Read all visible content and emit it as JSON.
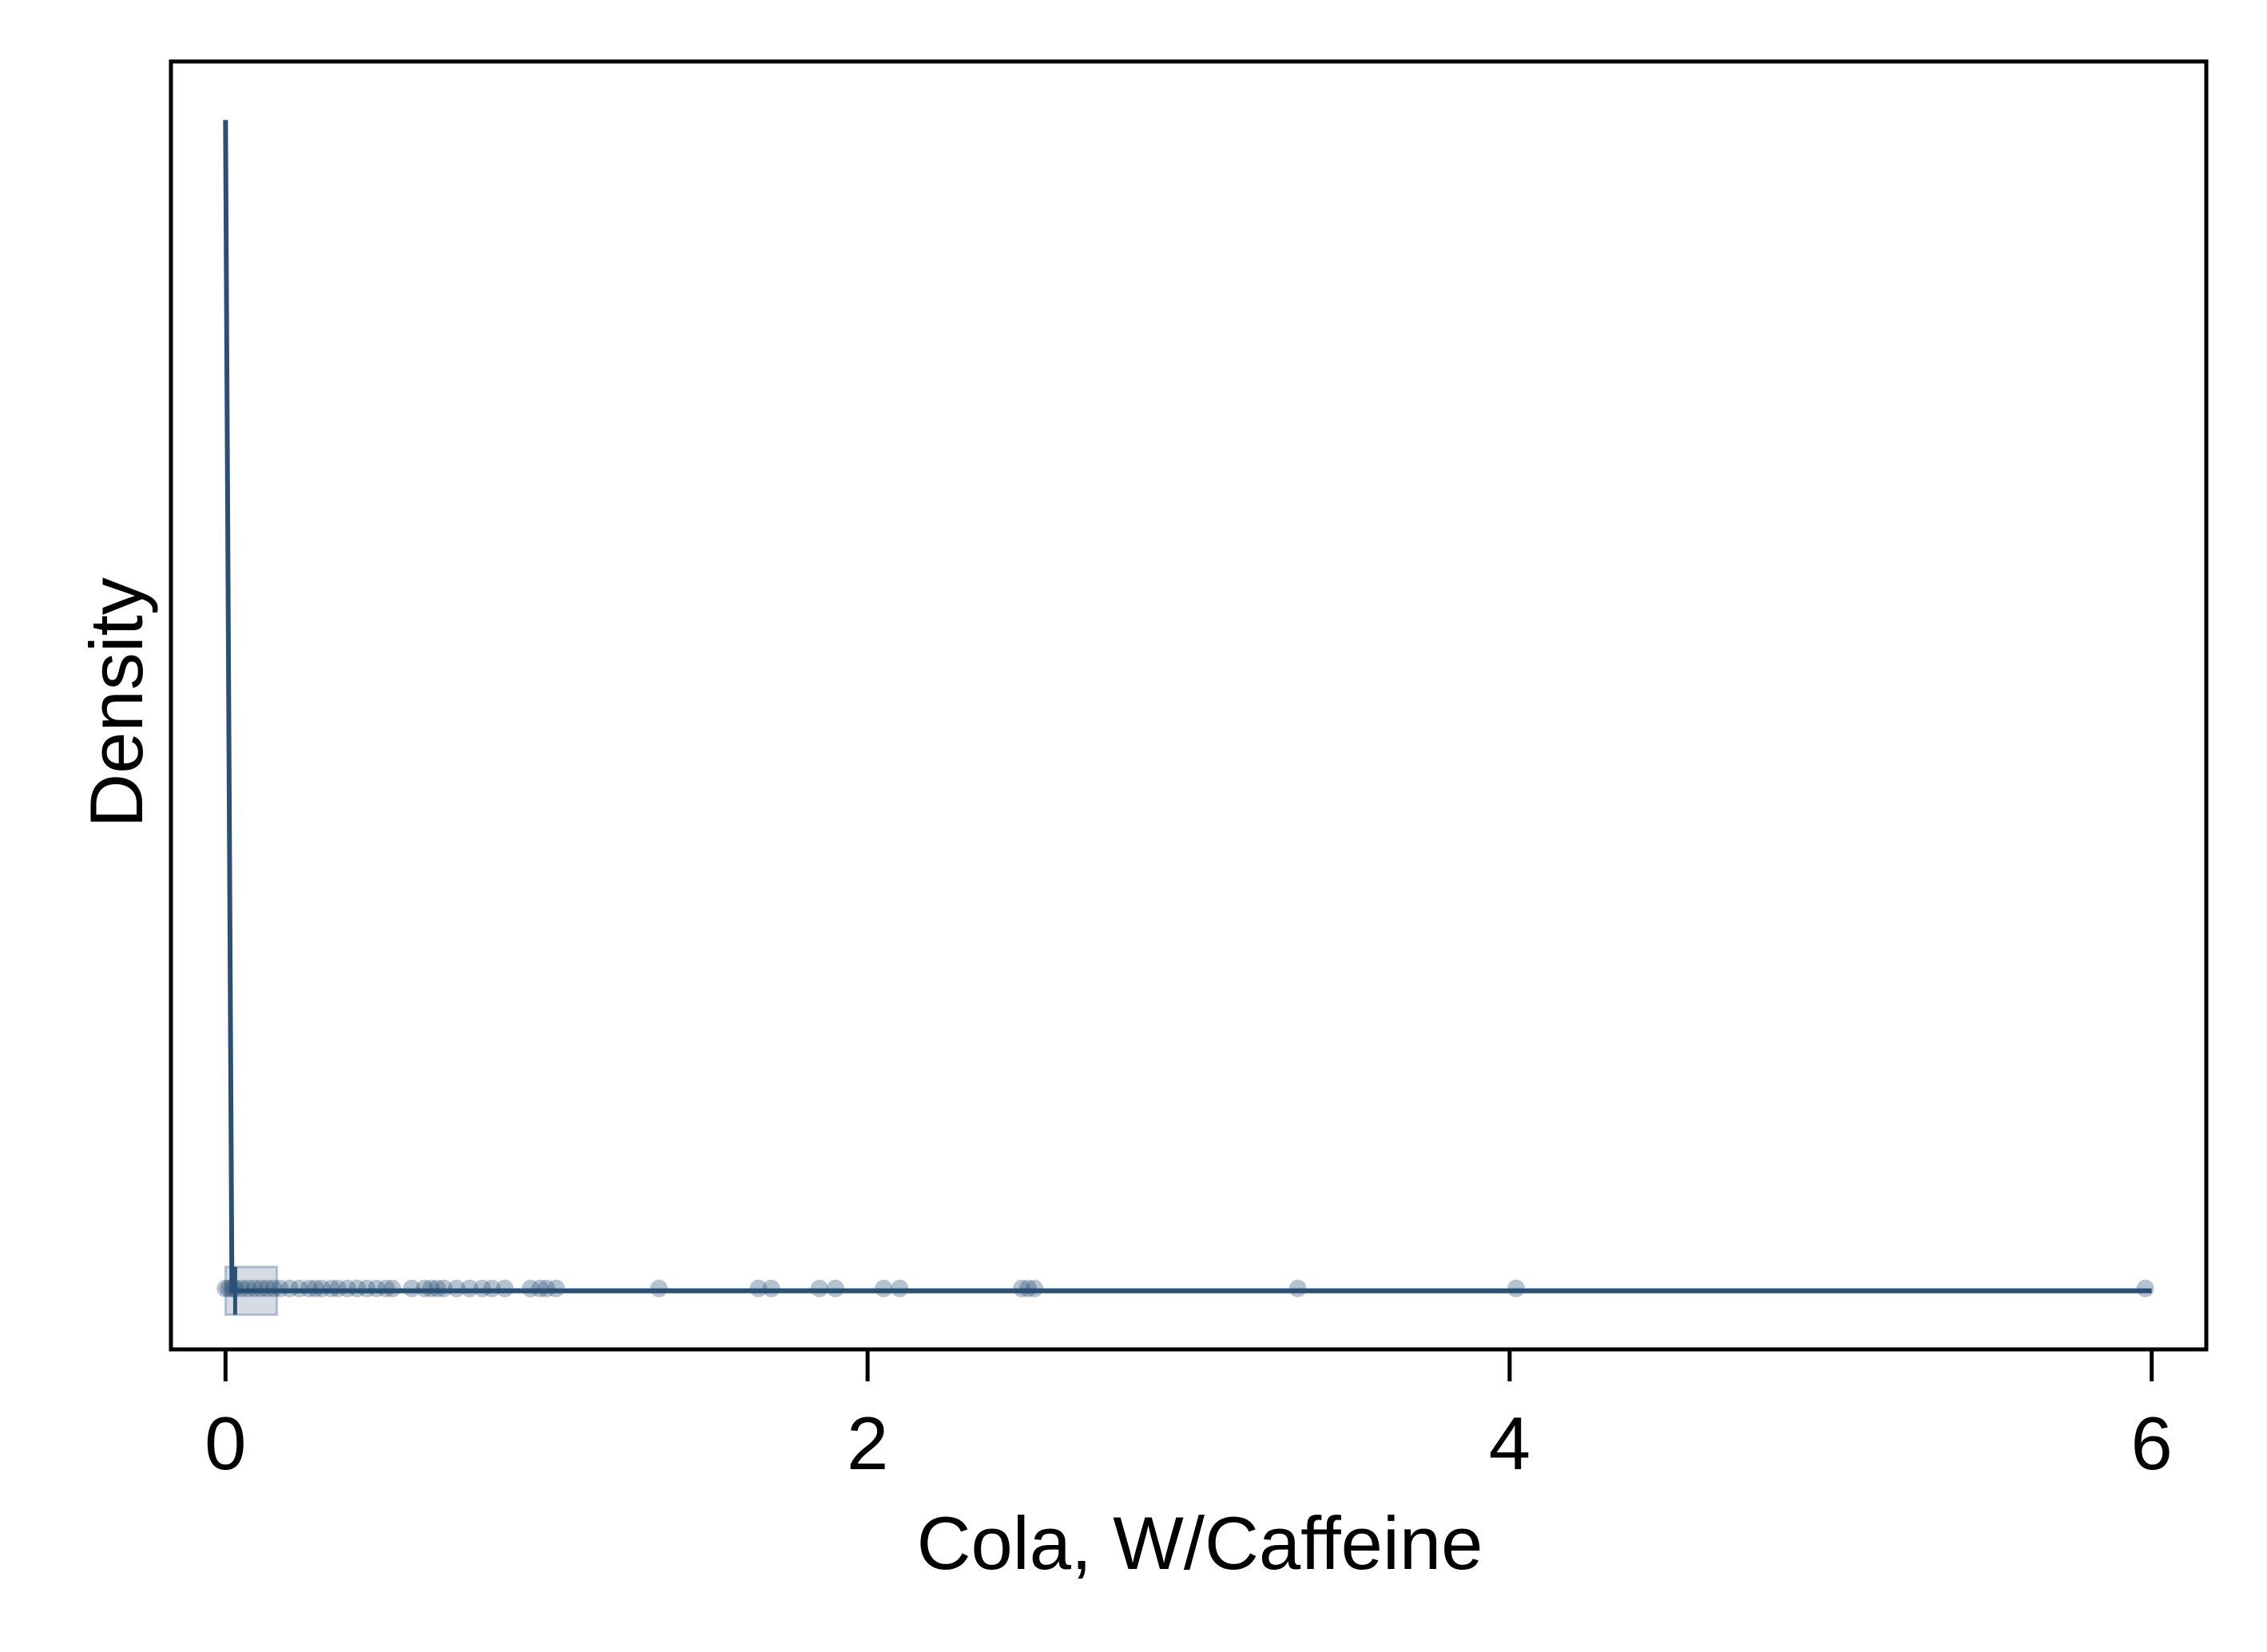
{
  "chart_data": {
    "type": "density",
    "x_label": "Cola, W/Caffeine",
    "y_label": "Density",
    "xlim": [
      -0.17,
      6.17
    ],
    "ylim": [
      -0.05,
      1.05
    ],
    "xticks": [
      0,
      2,
      4,
      6
    ],
    "color": "#2b5076",
    "x": [
      0,
      0.02,
      0.1,
      1,
      3,
      6
    ],
    "values": [
      1.0,
      0.0,
      0.0,
      0.0,
      0.0,
      0.0
    ],
    "points": [
      0,
      0.01,
      0.02,
      0.03,
      0.05,
      0.07,
      0.09,
      0.11,
      0.13,
      0.15,
      0.17,
      0.2,
      0.23,
      0.26,
      0.28,
      0.3,
      0.33,
      0.35,
      0.38,
      0.41,
      0.44,
      0.47,
      0.5,
      0.52,
      0.58,
      0.62,
      0.64,
      0.66,
      0.68,
      0.72,
      0.76,
      0.8,
      0.83,
      0.87,
      0.95,
      0.98,
      1.0,
      1.03,
      1.35,
      1.66,
      1.7,
      1.85,
      1.9,
      2.05,
      2.1,
      2.48,
      2.5,
      2.52,
      3.34,
      4.02,
      5.98
    ],
    "box": {
      "q1": 0,
      "median": 0.03,
      "q3": 0.16,
      "whisker_high": 5.98
    }
  }
}
